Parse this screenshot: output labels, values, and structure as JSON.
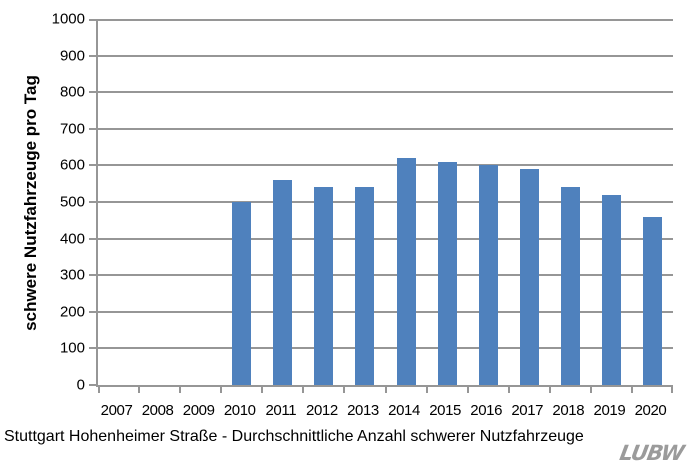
{
  "figure": {
    "background": "#FFFFFF"
  },
  "chart_data": {
    "type": "bar",
    "title": "Stuttgart Hohenheimer Straße - Durchschnittliche Anzahl schwerer Nutzfahrzeuge",
    "ylabel": "schwere Nutzfahrzeuge pro Tag",
    "xlabel": "",
    "categories": [
      "2007",
      "2008",
      "2009",
      "2010",
      "2011",
      "2012",
      "2013",
      "2014",
      "2015",
      "2016",
      "2017",
      "2018",
      "2019",
      "2020"
    ],
    "values": [
      null,
      null,
      null,
      500,
      560,
      540,
      540,
      620,
      610,
      600,
      590,
      540,
      520,
      460
    ],
    "ylim": [
      0,
      1000
    ],
    "ytick_step": 100,
    "ytick_labels": [
      "0",
      "100",
      "200",
      "300",
      "400",
      "500",
      "600",
      "700",
      "800",
      "900",
      "1000"
    ],
    "grid": true,
    "legend": "none",
    "bar_color": "#4F81BD",
    "axis_color": "#969696",
    "gridline_color": "#969696",
    "text_color": "#000000"
  },
  "logo": {
    "text": "LUBW",
    "color": "#9B9B9B"
  }
}
